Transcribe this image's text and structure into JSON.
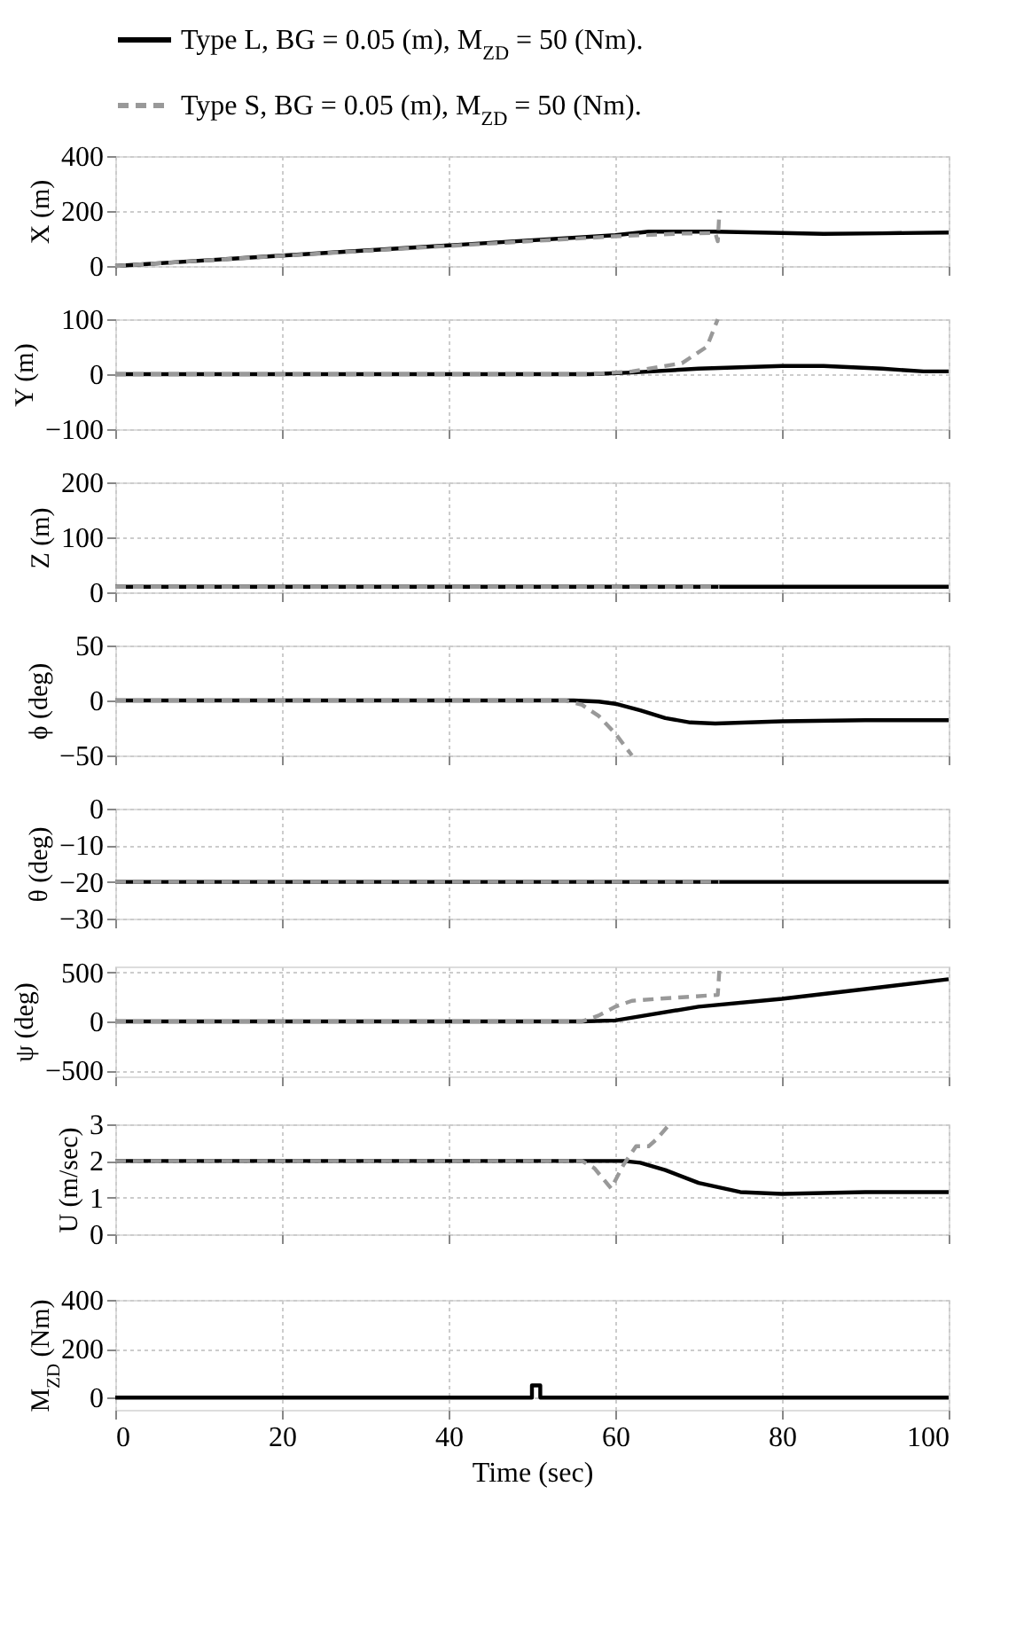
{
  "chart_data": [
    {
      "type": "line",
      "ylabel": "X (m)",
      "xlim": [
        0,
        100
      ],
      "xticks": [
        0,
        20,
        40,
        60,
        80,
        100
      ],
      "ylim": [
        0,
        400
      ],
      "yticks": [
        0,
        200,
        400
      ],
      "grid": true,
      "legend": "top",
      "tick_labels": "y",
      "series": [
        {
          "name": "Type L, BG = 0.05 (m), M$_{ZD}$ = 50 (Nm).",
          "color": "#000000",
          "line_style": "solid",
          "x": [
            0,
            20,
            40,
            60,
            64,
            72,
            80,
            85,
            92,
            100
          ],
          "values": [
            0,
            38,
            75,
            112,
            125,
            125,
            120,
            117,
            119,
            122
          ]
        },
        {
          "name": "Type S, BG = 0.05 (m), M$_{ZD}$ = 50 (Nm).",
          "color": "#999999",
          "line_style": "dashed",
          "x": [
            0,
            20,
            40,
            60,
            68,
            72,
            72.3,
            72.5
          ],
          "values": [
            0,
            37,
            73,
            108,
            118,
            120,
            90,
            200
          ]
        }
      ]
    },
    {
      "type": "line",
      "ylabel": "Y (m)",
      "xlim": [
        0,
        100
      ],
      "xticks": [
        0,
        20,
        40,
        60,
        80,
        100
      ],
      "ylim": [
        -100,
        100
      ],
      "yticks": [
        -100,
        0,
        100
      ],
      "grid": true,
      "tick_labels": "y",
      "series": [
        {
          "color": "#000000",
          "line_style": "solid",
          "x": [
            0,
            57,
            62,
            70,
            80,
            85,
            92,
            97,
            100
          ],
          "values": [
            0,
            0,
            3,
            10,
            15,
            15,
            10,
            5,
            5
          ]
        },
        {
          "color": "#999999",
          "line_style": "dashed",
          "x": [
            0,
            57,
            62,
            68,
            71,
            72.3
          ],
          "values": [
            0,
            0,
            5,
            20,
            50,
            100
          ]
        }
      ]
    },
    {
      "type": "line",
      "ylabel": "Z (m)",
      "xlim": [
        0,
        100
      ],
      "xticks": [
        0,
        20,
        40,
        60,
        80,
        100
      ],
      "ylim": [
        0,
        200
      ],
      "yticks": [
        0,
        100,
        200
      ],
      "grid": true,
      "tick_labels": "y",
      "series": [
        {
          "color": "#000000",
          "line_style": "solid",
          "x": [
            0,
            100
          ],
          "values": [
            10,
            10
          ]
        },
        {
          "color": "#999999",
          "line_style": "dashed",
          "x": [
            0,
            72.5
          ],
          "values": [
            10,
            10
          ]
        }
      ]
    },
    {
      "type": "line",
      "ylabel": "ϕ (deg)",
      "xlim": [
        0,
        100
      ],
      "xticks": [
        0,
        20,
        40,
        60,
        80,
        100
      ],
      "ylim": [
        -50,
        50
      ],
      "yticks": [
        -50,
        0,
        50
      ],
      "grid": true,
      "tick_labels": "y",
      "series": [
        {
          "color": "#000000",
          "line_style": "solid",
          "x": [
            0,
            55,
            58,
            60,
            63,
            66,
            69,
            72,
            80,
            90,
            100
          ],
          "values": [
            0,
            0,
            -1,
            -3,
            -9,
            -16,
            -20,
            -21,
            -19,
            -18,
            -18
          ]
        },
        {
          "color": "#999999",
          "line_style": "dashed",
          "x": [
            0,
            54,
            56,
            58,
            60,
            62
          ],
          "values": [
            0,
            0,
            -4,
            -14,
            -30,
            -50
          ]
        }
      ]
    },
    {
      "type": "line",
      "ylabel": "θ (deg)",
      "xlim": [
        0,
        100
      ],
      "xticks": [
        0,
        20,
        40,
        60,
        80,
        100
      ],
      "ylim": [
        -30,
        0
      ],
      "yticks": [
        -30,
        -20,
        -10,
        0
      ],
      "grid": true,
      "tick_labels": "y",
      "series": [
        {
          "color": "#000000",
          "line_style": "solid",
          "x": [
            0,
            100
          ],
          "values": [
            -20,
            -20
          ]
        },
        {
          "color": "#999999",
          "line_style": "dashed",
          "x": [
            0,
            72.5
          ],
          "values": [
            -20,
            -20
          ]
        }
      ]
    },
    {
      "type": "line",
      "ylabel": "ψ (deg)",
      "xlim": [
        0,
        100
      ],
      "xticks": [
        0,
        20,
        40,
        60,
        80,
        100
      ],
      "ylim": [
        -560,
        560
      ],
      "yticks": [
        -500,
        0,
        500
      ],
      "grid": true,
      "tick_labels": "y",
      "series": [
        {
          "color": "#000000",
          "line_style": "solid",
          "x": [
            0,
            56,
            60,
            70,
            80,
            90,
            100
          ],
          "values": [
            0,
            0,
            10,
            150,
            230,
            330,
            430
          ]
        },
        {
          "color": "#999999",
          "line_style": "dashed",
          "x": [
            0,
            56,
            58,
            60,
            62,
            65,
            72.3,
            72.5
          ],
          "values": [
            0,
            0,
            60,
            150,
            210,
            230,
            270,
            540
          ]
        }
      ]
    },
    {
      "type": "line",
      "ylabel": "U (m/sec)",
      "xlim": [
        0,
        100
      ],
      "xticks": [
        0,
        20,
        40,
        60,
        80,
        100
      ],
      "ylim": [
        0,
        3
      ],
      "yticks": [
        0,
        1,
        2,
        3
      ],
      "grid": true,
      "tick_labels": "y",
      "series": [
        {
          "color": "#000000",
          "line_style": "solid",
          "x": [
            0,
            61,
            63,
            66,
            70,
            75,
            80,
            90,
            100
          ],
          "values": [
            2,
            2,
            1.95,
            1.75,
            1.4,
            1.15,
            1.1,
            1.15,
            1.15
          ]
        },
        {
          "color": "#999999",
          "line_style": "dashed",
          "x": [
            0,
            56,
            57.5,
            59.5,
            61,
            62.5,
            64,
            65,
            66.5
          ],
          "values": [
            2,
            2,
            1.8,
            1.25,
            1.9,
            2.4,
            2.4,
            2.6,
            3
          ]
        }
      ]
    },
    {
      "type": "line",
      "ylabel": "M$_{ZD}$ (Nm)",
      "xlabel": "Time (sec)",
      "xlim": [
        0,
        100
      ],
      "xticks": [
        0,
        20,
        40,
        60,
        80,
        100
      ],
      "ylim": [
        -50,
        400
      ],
      "yticks": [
        0,
        200,
        400
      ],
      "grid": true,
      "series": [
        {
          "color": "#000000",
          "line_style": "solid",
          "x": [
            0,
            50,
            50,
            51,
            51,
            100
          ],
          "values": [
            0,
            0,
            50,
            50,
            0,
            0
          ]
        }
      ]
    }
  ]
}
